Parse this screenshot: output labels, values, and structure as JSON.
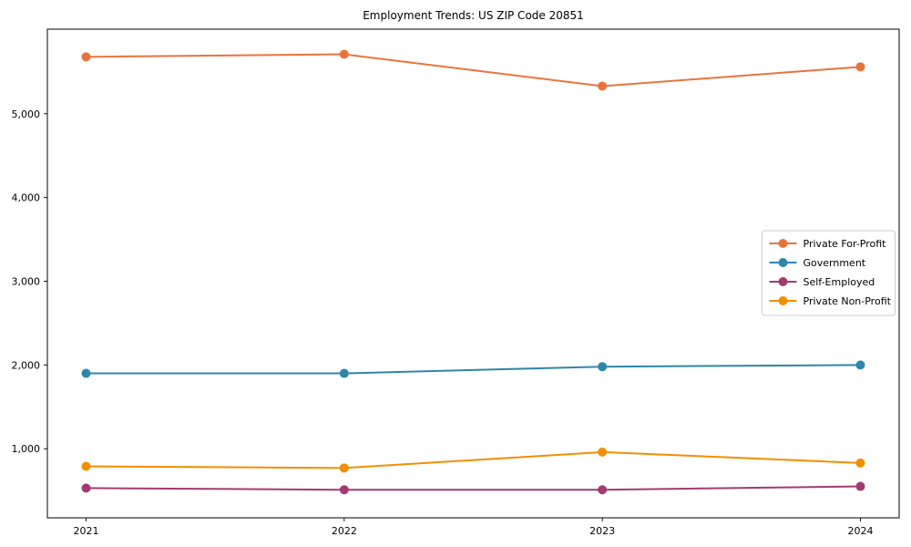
{
  "chart_data": {
    "type": "line",
    "title": "Employment Trends: US ZIP Code 20851",
    "xlabel": "",
    "ylabel": "",
    "x": [
      2021,
      2022,
      2023,
      2024
    ],
    "x_tick_labels": [
      "2021",
      "2022",
      "2023",
      "2024"
    ],
    "y_ticks": [
      1000,
      2000,
      3000,
      4000,
      5000
    ],
    "y_tick_labels": [
      "1,000",
      "2,000",
      "3,000",
      "4,000",
      "5,000"
    ],
    "xlim": [
      2020.85,
      2024.15
    ],
    "ylim": [
      175,
      6010
    ],
    "grid": false,
    "legend_position": "right-middle",
    "axis_color": "#000000",
    "background_color": "#ffffff",
    "legend_border_color": "#cccccc",
    "series": [
      {
        "name": "Private For-Profit",
        "color": "#E8743B",
        "values": [
          5680,
          5710,
          5330,
          5560
        ]
      },
      {
        "name": "Government",
        "color": "#2E86AB",
        "values": [
          1900,
          1900,
          1980,
          2000
        ]
      },
      {
        "name": "Self-Employed",
        "color": "#A23B72",
        "values": [
          530,
          510,
          510,
          550
        ]
      },
      {
        "name": "Private Non-Profit",
        "color": "#F18F01",
        "values": [
          790,
          770,
          960,
          830
        ]
      }
    ]
  }
}
